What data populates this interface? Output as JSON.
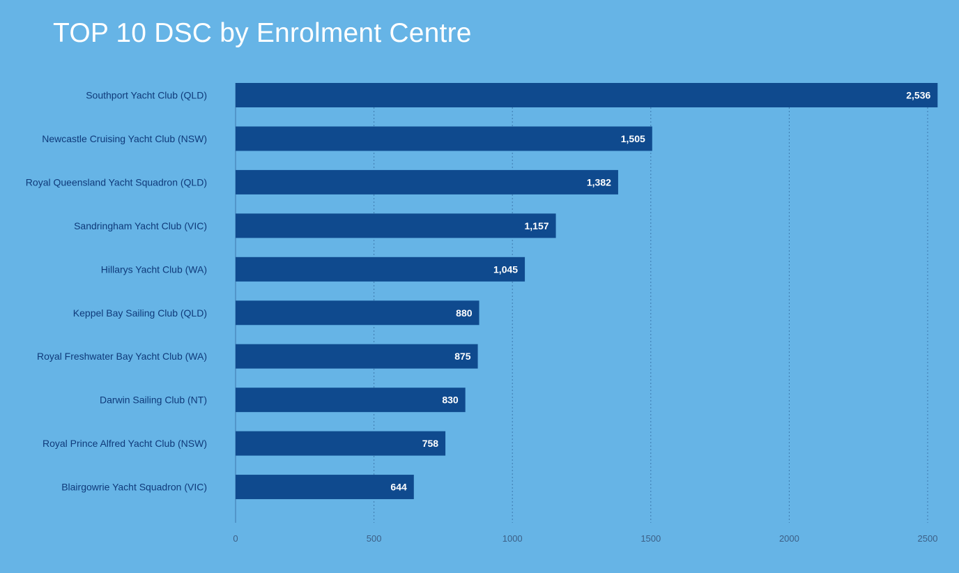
{
  "chart_data": {
    "type": "bar",
    "orientation": "horizontal",
    "title": "TOP 10 DSC by Enrolment Centre",
    "categories": [
      "Southport Yacht Club (QLD)",
      "Newcastle Cruising Yacht Club (NSW)",
      "Royal Queensland Yacht Squadron (QLD)",
      "Sandringham Yacht Club (VIC)",
      "Hillarys Yacht Club (WA)",
      "Keppel Bay Sailing Club (QLD)",
      "Royal Freshwater Bay Yacht Club (WA)",
      "Darwin Sailing Club (NT)",
      "Royal Prince Alfred Yacht Club (NSW)",
      "Blairgowrie Yacht Squadron (VIC)"
    ],
    "values": [
      2536,
      1505,
      1382,
      1157,
      1045,
      880,
      875,
      830,
      758,
      644
    ],
    "value_labels": [
      "2,536",
      "1,505",
      "1,382",
      "1,157",
      "1,045",
      "880",
      "875",
      "830",
      "758",
      "644"
    ],
    "xlim": [
      0,
      2500
    ],
    "xticks": [
      0,
      500,
      1000,
      1500,
      2000,
      2500
    ],
    "xtick_labels": [
      "0",
      "500",
      "1000",
      "1500",
      "2000",
      "2500"
    ],
    "xlabel": "",
    "ylabel": "",
    "grid": true,
    "legend": "none"
  },
  "colors": {
    "background": "#66b4e6",
    "bar": "#0f4a8e",
    "grid": "#3d78ad",
    "title": "#ffffff",
    "category_text": "#0f3a7a",
    "value_text": "#ffffff"
  }
}
